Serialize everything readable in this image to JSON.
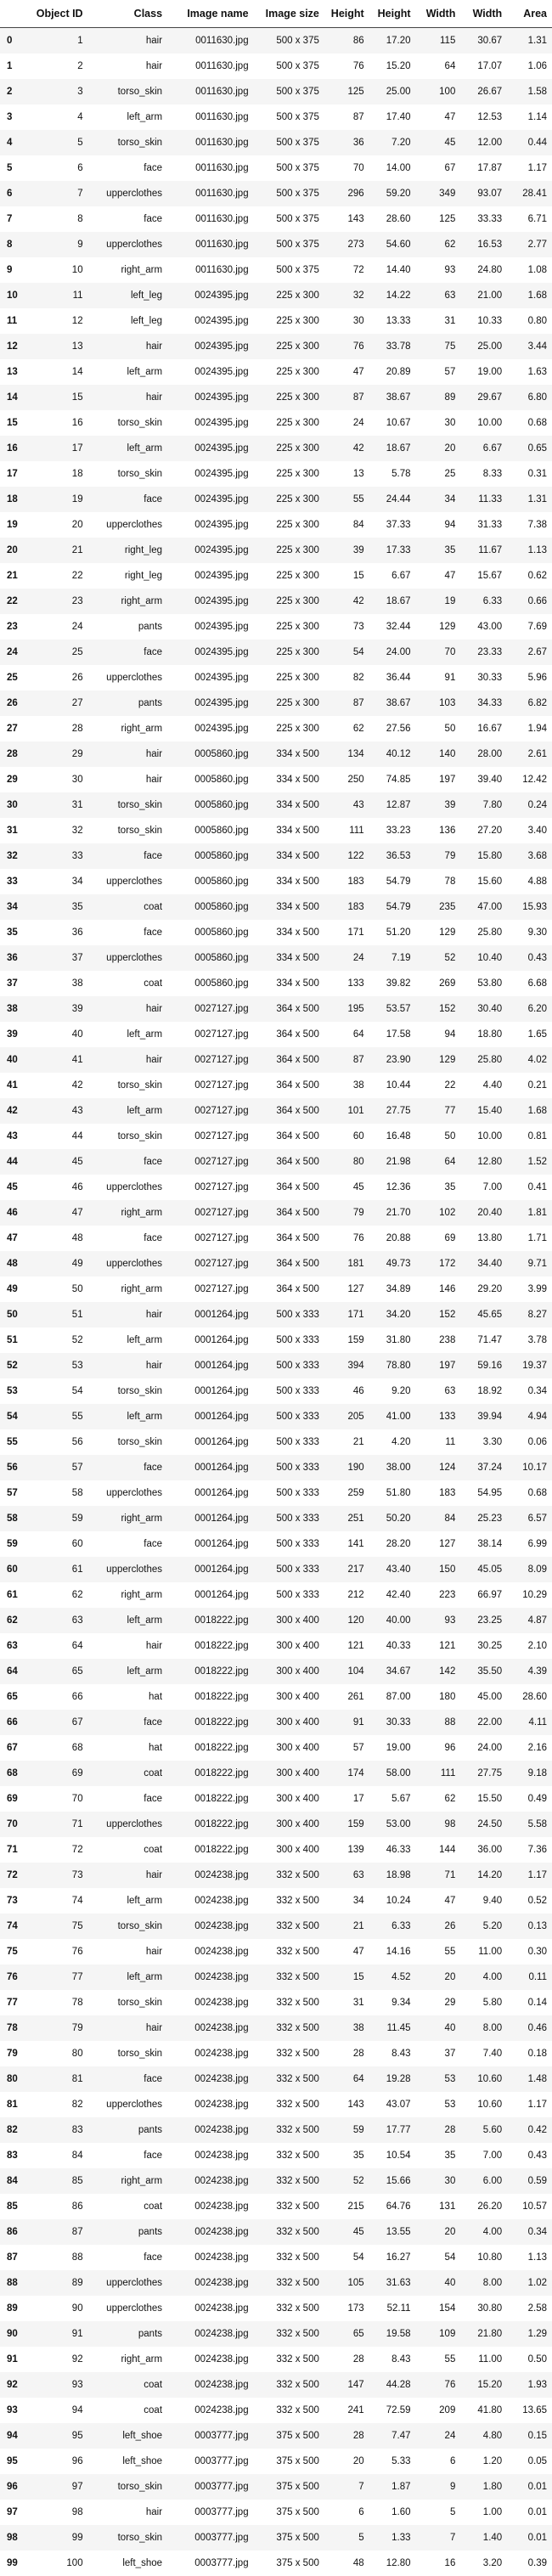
{
  "table": {
    "headers": [
      "",
      "Object ID",
      "Class",
      "Image name",
      "Image size",
      "Height",
      "Height",
      "Width",
      "Width",
      "Area"
    ],
    "rows": [
      [
        "0",
        "1",
        "hair",
        "0011630.jpg",
        "500 x 375",
        "86",
        "17.20",
        "115",
        "30.67",
        "1.31"
      ],
      [
        "1",
        "2",
        "hair",
        "0011630.jpg",
        "500 x 375",
        "76",
        "15.20",
        "64",
        "17.07",
        "1.06"
      ],
      [
        "2",
        "3",
        "torso_skin",
        "0011630.jpg",
        "500 x 375",
        "125",
        "25.00",
        "100",
        "26.67",
        "1.58"
      ],
      [
        "3",
        "4",
        "left_arm",
        "0011630.jpg",
        "500 x 375",
        "87",
        "17.40",
        "47",
        "12.53",
        "1.14"
      ],
      [
        "4",
        "5",
        "torso_skin",
        "0011630.jpg",
        "500 x 375",
        "36",
        "7.20",
        "45",
        "12.00",
        "0.44"
      ],
      [
        "5",
        "6",
        "face",
        "0011630.jpg",
        "500 x 375",
        "70",
        "14.00",
        "67",
        "17.87",
        "1.17"
      ],
      [
        "6",
        "7",
        "upperclothes",
        "0011630.jpg",
        "500 x 375",
        "296",
        "59.20",
        "349",
        "93.07",
        "28.41"
      ],
      [
        "7",
        "8",
        "face",
        "0011630.jpg",
        "500 x 375",
        "143",
        "28.60",
        "125",
        "33.33",
        "6.71"
      ],
      [
        "8",
        "9",
        "upperclothes",
        "0011630.jpg",
        "500 x 375",
        "273",
        "54.60",
        "62",
        "16.53",
        "2.77"
      ],
      [
        "9",
        "10",
        "right_arm",
        "0011630.jpg",
        "500 x 375",
        "72",
        "14.40",
        "93",
        "24.80",
        "1.08"
      ],
      [
        "10",
        "11",
        "left_leg",
        "0024395.jpg",
        "225 x 300",
        "32",
        "14.22",
        "63",
        "21.00",
        "1.68"
      ],
      [
        "11",
        "12",
        "left_leg",
        "0024395.jpg",
        "225 x 300",
        "30",
        "13.33",
        "31",
        "10.33",
        "0.80"
      ],
      [
        "12",
        "13",
        "hair",
        "0024395.jpg",
        "225 x 300",
        "76",
        "33.78",
        "75",
        "25.00",
        "3.44"
      ],
      [
        "13",
        "14",
        "left_arm",
        "0024395.jpg",
        "225 x 300",
        "47",
        "20.89",
        "57",
        "19.00",
        "1.63"
      ],
      [
        "14",
        "15",
        "hair",
        "0024395.jpg",
        "225 x 300",
        "87",
        "38.67",
        "89",
        "29.67",
        "6.80"
      ],
      [
        "15",
        "16",
        "torso_skin",
        "0024395.jpg",
        "225 x 300",
        "24",
        "10.67",
        "30",
        "10.00",
        "0.68"
      ],
      [
        "16",
        "17",
        "left_arm",
        "0024395.jpg",
        "225 x 300",
        "42",
        "18.67",
        "20",
        "6.67",
        "0.65"
      ],
      [
        "17",
        "18",
        "torso_skin",
        "0024395.jpg",
        "225 x 300",
        "13",
        "5.78",
        "25",
        "8.33",
        "0.31"
      ],
      [
        "18",
        "19",
        "face",
        "0024395.jpg",
        "225 x 300",
        "55",
        "24.44",
        "34",
        "11.33",
        "1.31"
      ],
      [
        "19",
        "20",
        "upperclothes",
        "0024395.jpg",
        "225 x 300",
        "84",
        "37.33",
        "94",
        "31.33",
        "7.38"
      ],
      [
        "20",
        "21",
        "right_leg",
        "0024395.jpg",
        "225 x 300",
        "39",
        "17.33",
        "35",
        "11.67",
        "1.13"
      ],
      [
        "21",
        "22",
        "right_leg",
        "0024395.jpg",
        "225 x 300",
        "15",
        "6.67",
        "47",
        "15.67",
        "0.62"
      ],
      [
        "22",
        "23",
        "right_arm",
        "0024395.jpg",
        "225 x 300",
        "42",
        "18.67",
        "19",
        "6.33",
        "0.66"
      ],
      [
        "23",
        "24",
        "pants",
        "0024395.jpg",
        "225 x 300",
        "73",
        "32.44",
        "129",
        "43.00",
        "7.69"
      ],
      [
        "24",
        "25",
        "face",
        "0024395.jpg",
        "225 x 300",
        "54",
        "24.00",
        "70",
        "23.33",
        "2.67"
      ],
      [
        "25",
        "26",
        "upperclothes",
        "0024395.jpg",
        "225 x 300",
        "82",
        "36.44",
        "91",
        "30.33",
        "5.96"
      ],
      [
        "26",
        "27",
        "pants",
        "0024395.jpg",
        "225 x 300",
        "87",
        "38.67",
        "103",
        "34.33",
        "6.82"
      ],
      [
        "27",
        "28",
        "right_arm",
        "0024395.jpg",
        "225 x 300",
        "62",
        "27.56",
        "50",
        "16.67",
        "1.94"
      ],
      [
        "28",
        "29",
        "hair",
        "0005860.jpg",
        "334 x 500",
        "134",
        "40.12",
        "140",
        "28.00",
        "2.61"
      ],
      [
        "29",
        "30",
        "hair",
        "0005860.jpg",
        "334 x 500",
        "250",
        "74.85",
        "197",
        "39.40",
        "12.42"
      ],
      [
        "30",
        "31",
        "torso_skin",
        "0005860.jpg",
        "334 x 500",
        "43",
        "12.87",
        "39",
        "7.80",
        "0.24"
      ],
      [
        "31",
        "32",
        "torso_skin",
        "0005860.jpg",
        "334 x 500",
        "111",
        "33.23",
        "136",
        "27.20",
        "3.40"
      ],
      [
        "32",
        "33",
        "face",
        "0005860.jpg",
        "334 x 500",
        "122",
        "36.53",
        "79",
        "15.80",
        "3.68"
      ],
      [
        "33",
        "34",
        "upperclothes",
        "0005860.jpg",
        "334 x 500",
        "183",
        "54.79",
        "78",
        "15.60",
        "4.88"
      ],
      [
        "34",
        "35",
        "coat",
        "0005860.jpg",
        "334 x 500",
        "183",
        "54.79",
        "235",
        "47.00",
        "15.93"
      ],
      [
        "35",
        "36",
        "face",
        "0005860.jpg",
        "334 x 500",
        "171",
        "51.20",
        "129",
        "25.80",
        "9.30"
      ],
      [
        "36",
        "37",
        "upperclothes",
        "0005860.jpg",
        "334 x 500",
        "24",
        "7.19",
        "52",
        "10.40",
        "0.43"
      ],
      [
        "37",
        "38",
        "coat",
        "0005860.jpg",
        "334 x 500",
        "133",
        "39.82",
        "269",
        "53.80",
        "6.68"
      ],
      [
        "38",
        "39",
        "hair",
        "0027127.jpg",
        "364 x 500",
        "195",
        "53.57",
        "152",
        "30.40",
        "6.20"
      ],
      [
        "39",
        "40",
        "left_arm",
        "0027127.jpg",
        "364 x 500",
        "64",
        "17.58",
        "94",
        "18.80",
        "1.65"
      ],
      [
        "40",
        "41",
        "hair",
        "0027127.jpg",
        "364 x 500",
        "87",
        "23.90",
        "129",
        "25.80",
        "4.02"
      ],
      [
        "41",
        "42",
        "torso_skin",
        "0027127.jpg",
        "364 x 500",
        "38",
        "10.44",
        "22",
        "4.40",
        "0.21"
      ],
      [
        "42",
        "43",
        "left_arm",
        "0027127.jpg",
        "364 x 500",
        "101",
        "27.75",
        "77",
        "15.40",
        "1.68"
      ],
      [
        "43",
        "44",
        "torso_skin",
        "0027127.jpg",
        "364 x 500",
        "60",
        "16.48",
        "50",
        "10.00",
        "0.81"
      ],
      [
        "44",
        "45",
        "face",
        "0027127.jpg",
        "364 x 500",
        "80",
        "21.98",
        "64",
        "12.80",
        "1.52"
      ],
      [
        "45",
        "46",
        "upperclothes",
        "0027127.jpg",
        "364 x 500",
        "45",
        "12.36",
        "35",
        "7.00",
        "0.41"
      ],
      [
        "46",
        "47",
        "right_arm",
        "0027127.jpg",
        "364 x 500",
        "79",
        "21.70",
        "102",
        "20.40",
        "1.81"
      ],
      [
        "47",
        "48",
        "face",
        "0027127.jpg",
        "364 x 500",
        "76",
        "20.88",
        "69",
        "13.80",
        "1.71"
      ],
      [
        "48",
        "49",
        "upperclothes",
        "0027127.jpg",
        "364 x 500",
        "181",
        "49.73",
        "172",
        "34.40",
        "9.71"
      ],
      [
        "49",
        "50",
        "right_arm",
        "0027127.jpg",
        "364 x 500",
        "127",
        "34.89",
        "146",
        "29.20",
        "3.99"
      ],
      [
        "50",
        "51",
        "hair",
        "0001264.jpg",
        "500 x 333",
        "171",
        "34.20",
        "152",
        "45.65",
        "8.27"
      ],
      [
        "51",
        "52",
        "left_arm",
        "0001264.jpg",
        "500 x 333",
        "159",
        "31.80",
        "238",
        "71.47",
        "3.78"
      ],
      [
        "52",
        "53",
        "hair",
        "0001264.jpg",
        "500 x 333",
        "394",
        "78.80",
        "197",
        "59.16",
        "19.37"
      ],
      [
        "53",
        "54",
        "torso_skin",
        "0001264.jpg",
        "500 x 333",
        "46",
        "9.20",
        "63",
        "18.92",
        "0.34"
      ],
      [
        "54",
        "55",
        "left_arm",
        "0001264.jpg",
        "500 x 333",
        "205",
        "41.00",
        "133",
        "39.94",
        "4.94"
      ],
      [
        "55",
        "56",
        "torso_skin",
        "0001264.jpg",
        "500 x 333",
        "21",
        "4.20",
        "11",
        "3.30",
        "0.06"
      ],
      [
        "56",
        "57",
        "face",
        "0001264.jpg",
        "500 x 333",
        "190",
        "38.00",
        "124",
        "37.24",
        "10.17"
      ],
      [
        "57",
        "58",
        "upperclothes",
        "0001264.jpg",
        "500 x 333",
        "259",
        "51.80",
        "183",
        "54.95",
        "0.68"
      ],
      [
        "58",
        "59",
        "right_arm",
        "0001264.jpg",
        "500 x 333",
        "251",
        "50.20",
        "84",
        "25.23",
        "6.57"
      ],
      [
        "59",
        "60",
        "face",
        "0001264.jpg",
        "500 x 333",
        "141",
        "28.20",
        "127",
        "38.14",
        "6.99"
      ],
      [
        "60",
        "61",
        "upperclothes",
        "0001264.jpg",
        "500 x 333",
        "217",
        "43.40",
        "150",
        "45.05",
        "8.09"
      ],
      [
        "61",
        "62",
        "right_arm",
        "0001264.jpg",
        "500 x 333",
        "212",
        "42.40",
        "223",
        "66.97",
        "10.29"
      ],
      [
        "62",
        "63",
        "left_arm",
        "0018222.jpg",
        "300 x 400",
        "120",
        "40.00",
        "93",
        "23.25",
        "4.87"
      ],
      [
        "63",
        "64",
        "hair",
        "0018222.jpg",
        "300 x 400",
        "121",
        "40.33",
        "121",
        "30.25",
        "2.10"
      ],
      [
        "64",
        "65",
        "left_arm",
        "0018222.jpg",
        "300 x 400",
        "104",
        "34.67",
        "142",
        "35.50",
        "4.39"
      ],
      [
        "65",
        "66",
        "hat",
        "0018222.jpg",
        "300 x 400",
        "261",
        "87.00",
        "180",
        "45.00",
        "28.60"
      ],
      [
        "66",
        "67",
        "face",
        "0018222.jpg",
        "300 x 400",
        "91",
        "30.33",
        "88",
        "22.00",
        "4.11"
      ],
      [
        "67",
        "68",
        "hat",
        "0018222.jpg",
        "300 x 400",
        "57",
        "19.00",
        "96",
        "24.00",
        "2.16"
      ],
      [
        "68",
        "69",
        "coat",
        "0018222.jpg",
        "300 x 400",
        "174",
        "58.00",
        "111",
        "27.75",
        "9.18"
      ],
      [
        "69",
        "70",
        "face",
        "0018222.jpg",
        "300 x 400",
        "17",
        "5.67",
        "62",
        "15.50",
        "0.49"
      ],
      [
        "70",
        "71",
        "upperclothes",
        "0018222.jpg",
        "300 x 400",
        "159",
        "53.00",
        "98",
        "24.50",
        "5.58"
      ],
      [
        "71",
        "72",
        "coat",
        "0018222.jpg",
        "300 x 400",
        "139",
        "46.33",
        "144",
        "36.00",
        "7.36"
      ],
      [
        "72",
        "73",
        "hair",
        "0024238.jpg",
        "332 x 500",
        "63",
        "18.98",
        "71",
        "14.20",
        "1.17"
      ],
      [
        "73",
        "74",
        "left_arm",
        "0024238.jpg",
        "332 x 500",
        "34",
        "10.24",
        "47",
        "9.40",
        "0.52"
      ],
      [
        "74",
        "75",
        "torso_skin",
        "0024238.jpg",
        "332 x 500",
        "21",
        "6.33",
        "26",
        "5.20",
        "0.13"
      ],
      [
        "75",
        "76",
        "hair",
        "0024238.jpg",
        "332 x 500",
        "47",
        "14.16",
        "55",
        "11.00",
        "0.30"
      ],
      [
        "76",
        "77",
        "left_arm",
        "0024238.jpg",
        "332 x 500",
        "15",
        "4.52",
        "20",
        "4.00",
        "0.11"
      ],
      [
        "77",
        "78",
        "torso_skin",
        "0024238.jpg",
        "332 x 500",
        "31",
        "9.34",
        "29",
        "5.80",
        "0.14"
      ],
      [
        "78",
        "79",
        "hair",
        "0024238.jpg",
        "332 x 500",
        "38",
        "11.45",
        "40",
        "8.00",
        "0.46"
      ],
      [
        "79",
        "80",
        "torso_skin",
        "0024238.jpg",
        "332 x 500",
        "28",
        "8.43",
        "37",
        "7.40",
        "0.18"
      ],
      [
        "80",
        "81",
        "face",
        "0024238.jpg",
        "332 x 500",
        "64",
        "19.28",
        "53",
        "10.60",
        "1.48"
      ],
      [
        "81",
        "82",
        "upperclothes",
        "0024238.jpg",
        "332 x 500",
        "143",
        "43.07",
        "53",
        "10.60",
        "1.17"
      ],
      [
        "82",
        "83",
        "pants",
        "0024238.jpg",
        "332 x 500",
        "59",
        "17.77",
        "28",
        "5.60",
        "0.42"
      ],
      [
        "83",
        "84",
        "face",
        "0024238.jpg",
        "332 x 500",
        "35",
        "10.54",
        "35",
        "7.00",
        "0.43"
      ],
      [
        "84",
        "85",
        "right_arm",
        "0024238.jpg",
        "332 x 500",
        "52",
        "15.66",
        "30",
        "6.00",
        "0.59"
      ],
      [
        "85",
        "86",
        "coat",
        "0024238.jpg",
        "332 x 500",
        "215",
        "64.76",
        "131",
        "26.20",
        "10.57"
      ],
      [
        "86",
        "87",
        "pants",
        "0024238.jpg",
        "332 x 500",
        "45",
        "13.55",
        "20",
        "4.00",
        "0.34"
      ],
      [
        "87",
        "88",
        "face",
        "0024238.jpg",
        "332 x 500",
        "54",
        "16.27",
        "54",
        "10.80",
        "1.13"
      ],
      [
        "88",
        "89",
        "upperclothes",
        "0024238.jpg",
        "332 x 500",
        "105",
        "31.63",
        "40",
        "8.00",
        "1.02"
      ],
      [
        "89",
        "90",
        "upperclothes",
        "0024238.jpg",
        "332 x 500",
        "173",
        "52.11",
        "154",
        "30.80",
        "2.58"
      ],
      [
        "90",
        "91",
        "pants",
        "0024238.jpg",
        "332 x 500",
        "65",
        "19.58",
        "109",
        "21.80",
        "1.29"
      ],
      [
        "91",
        "92",
        "right_arm",
        "0024238.jpg",
        "332 x 500",
        "28",
        "8.43",
        "55",
        "11.00",
        "0.50"
      ],
      [
        "92",
        "93",
        "coat",
        "0024238.jpg",
        "332 x 500",
        "147",
        "44.28",
        "76",
        "15.20",
        "1.93"
      ],
      [
        "93",
        "94",
        "coat",
        "0024238.jpg",
        "332 x 500",
        "241",
        "72.59",
        "209",
        "41.80",
        "13.65"
      ],
      [
        "94",
        "95",
        "left_shoe",
        "0003777.jpg",
        "375 x 500",
        "28",
        "7.47",
        "24",
        "4.80",
        "0.15"
      ],
      [
        "95",
        "96",
        "left_shoe",
        "0003777.jpg",
        "375 x 500",
        "20",
        "5.33",
        "6",
        "1.20",
        "0.05"
      ],
      [
        "96",
        "97",
        "torso_skin",
        "0003777.jpg",
        "375 x 500",
        "7",
        "1.87",
        "9",
        "1.80",
        "0.01"
      ],
      [
        "97",
        "98",
        "hair",
        "0003777.jpg",
        "375 x 500",
        "6",
        "1.60",
        "5",
        "1.00",
        "0.01"
      ],
      [
        "98",
        "99",
        "torso_skin",
        "0003777.jpg",
        "375 x 500",
        "5",
        "1.33",
        "7",
        "1.40",
        "0.01"
      ],
      [
        "99",
        "100",
        "left_shoe",
        "0003777.jpg",
        "375 x 500",
        "48",
        "12.80",
        "16",
        "3.20",
        "0.39"
      ]
    ]
  }
}
